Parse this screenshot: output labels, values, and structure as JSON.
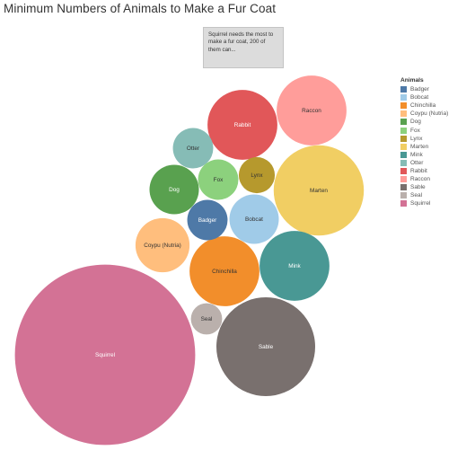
{
  "chart_data": {
    "type": "bubble",
    "title": "Minimum Numbers of Animals to Make a Fur Coat",
    "annotation": "Squirrel needs the most to make a fur coat, 200 of them can...",
    "legend": {
      "title": "Animals",
      "placement": "right"
    },
    "series": [
      {
        "name": "Badger",
        "color": "#4e79a7"
      },
      {
        "name": "Bobcat",
        "color": "#a0cbe8"
      },
      {
        "name": "Chinchilla",
        "color": "#f28e2b"
      },
      {
        "name": "Coypu (Nutria)",
        "color": "#ffbe7d"
      },
      {
        "name": "Dog",
        "color": "#59a14f"
      },
      {
        "name": "Fox",
        "color": "#8cd17d"
      },
      {
        "name": "Lynx",
        "color": "#b6992d"
      },
      {
        "name": "Marten",
        "color": "#f1ce63"
      },
      {
        "name": "Mink",
        "color": "#499894"
      },
      {
        "name": "Otter",
        "color": "#86bcb6"
      },
      {
        "name": "Rabbit",
        "color": "#e15759"
      },
      {
        "name": "Raccon",
        "color": "#ff9d9a"
      },
      {
        "name": "Sable",
        "color": "#79706e"
      },
      {
        "name": "Seal",
        "color": "#bab0ac"
      },
      {
        "name": "Squirrel",
        "color": "#d37295"
      }
    ],
    "bubbles": [
      {
        "label": "Squirrel",
        "value": 200,
        "label_color": "#ffffff"
      },
      {
        "label": "Sable",
        "value": 60,
        "label_color": "#ffffff"
      },
      {
        "label": "Marten",
        "value": 50,
        "label_color": "#333333"
      },
      {
        "label": "Mink",
        "value": 30,
        "label_color": "#ffffff"
      },
      {
        "label": "Rabbit",
        "value": 30,
        "label_color": "#ffffff"
      },
      {
        "label": "Raccon",
        "value": 30,
        "label_color": "#333333"
      },
      {
        "label": "Chinchilla",
        "value": 30,
        "label_color": "#333333"
      },
      {
        "label": "Coypu (Nutria)",
        "value": 18,
        "label_color": "#333333"
      },
      {
        "label": "Bobcat",
        "value": 15,
        "label_color": "#333333"
      },
      {
        "label": "Dog",
        "value": 15,
        "label_color": "#ffffff"
      },
      {
        "label": "Otter",
        "value": 10,
        "label_color": "#333333"
      },
      {
        "label": "Fox",
        "value": 10,
        "label_color": "#333333"
      },
      {
        "label": "Badger",
        "value": 10,
        "label_color": "#ffffff"
      },
      {
        "label": "Lynx",
        "value": 8,
        "label_color": "#333333"
      },
      {
        "label": "Seal",
        "value": 6,
        "label_color": "#333333"
      }
    ]
  }
}
